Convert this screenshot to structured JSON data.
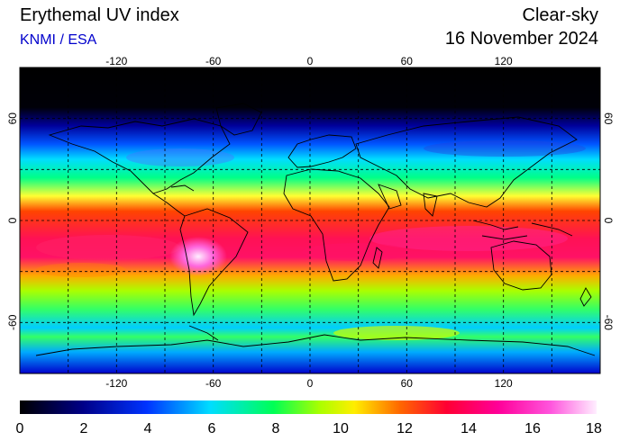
{
  "header": {
    "title": "Erythemal UV index",
    "source": "KNMI / ESA",
    "condition": "Clear-sky",
    "date": "16 November 2024"
  },
  "map": {
    "projection": "equirectangular",
    "lon_range": [
      -180,
      180
    ],
    "lat_range": [
      -90,
      90
    ],
    "lon_tick_labels": [
      "-120",
      "-60",
      "0",
      "60",
      "120"
    ],
    "lat_tick_labels": [
      "60",
      "0",
      "-60"
    ],
    "gridlines": "dashed"
  },
  "colorbar": {
    "min": 0,
    "max": 18,
    "labels": [
      "0",
      "2",
      "4",
      "6",
      "8",
      "10",
      "12",
      "14",
      "16",
      "18"
    ],
    "colors": [
      "#000000",
      "#0000ff",
      "#00ccff",
      "#00ff66",
      "#aaff00",
      "#ffdd00",
      "#ff3300",
      "#ff0066",
      "#ff33cc",
      "#ffffff"
    ]
  }
}
